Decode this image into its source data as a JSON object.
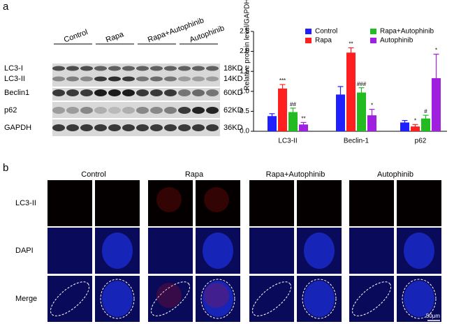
{
  "panel_labels": [
    "a",
    "b"
  ],
  "blot": {
    "groups": [
      "Control",
      "Rapa",
      "Rapa+Autophinib",
      "Autophinib"
    ],
    "proteins": [
      "LC3-I",
      "LC3-II",
      "Beclin1",
      "p62",
      "GAPDH"
    ],
    "sizes": [
      "18KD",
      "14KD",
      "60KD",
      "62KD",
      "36KD"
    ]
  },
  "chart_data": {
    "type": "bar",
    "ylabel": "Relative protein level/GAPDH",
    "categories": [
      "LC3-II",
      "Beclin-1",
      "p62"
    ],
    "series": [
      {
        "name": "Control",
        "color": "#1f1fff",
        "values": [
          0.38,
          0.92,
          0.22
        ],
        "errors": [
          0.06,
          0.2,
          0.05
        ],
        "annotations": [
          null,
          null,
          null
        ]
      },
      {
        "name": "Rapa",
        "color": "#ff1f1f",
        "values": [
          1.07,
          1.97,
          0.12
        ],
        "errors": [
          0.1,
          0.12,
          0.05
        ],
        "annotations": [
          "***",
          "**",
          "*"
        ]
      },
      {
        "name": "Rapa+Autophinib",
        "color": "#22bb22",
        "values": [
          0.48,
          0.97,
          0.32
        ],
        "errors": [
          0.1,
          0.12,
          0.08
        ],
        "annotations": [
          "##",
          "###",
          "#"
        ]
      },
      {
        "name": "Autophinib",
        "color": "#a020e0",
        "values": [
          0.17,
          0.4,
          1.33
        ],
        "errors": [
          0.05,
          0.15,
          0.6
        ],
        "annotations": [
          "**",
          "*",
          "*"
        ]
      }
    ],
    "ylim": [
      0,
      2.5
    ],
    "yticks": [
      {
        "value": 0,
        "label": "0.0"
      },
      {
        "value": 0.5,
        "label": "0.5"
      },
      {
        "value": 1,
        "label": "1.0"
      },
      {
        "value": 1.5,
        "label": "1.5"
      },
      {
        "value": 2,
        "label": "2.0"
      },
      {
        "value": 2.5,
        "label": "2.5"
      }
    ]
  },
  "microscopy": {
    "columns": [
      "Control",
      "Rapa",
      "Rapa+Autophinib",
      "Autophinib"
    ],
    "rows": [
      "LC3-II",
      "DAPI",
      "Merge"
    ],
    "scale_bar": "50μm"
  }
}
